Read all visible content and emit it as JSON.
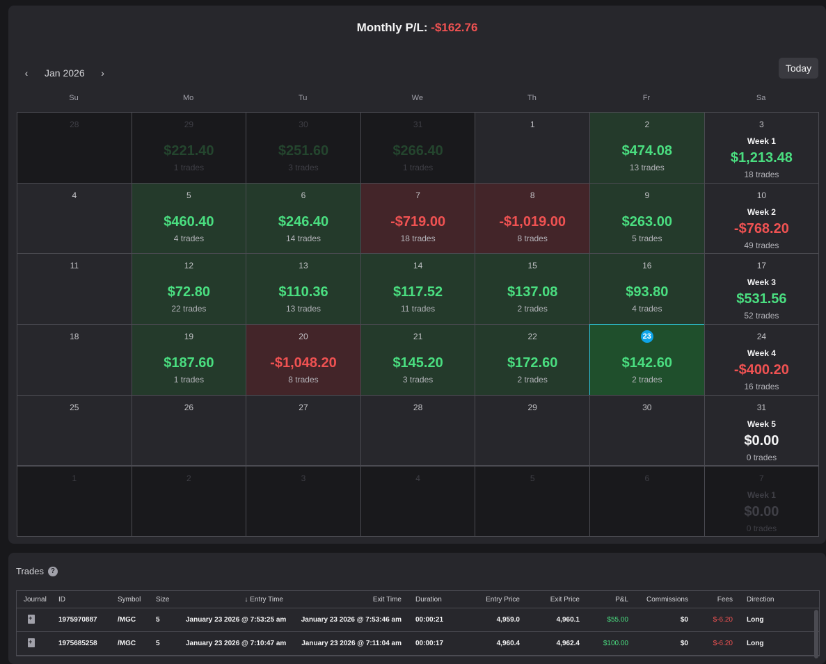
{
  "summary": {
    "label": "Monthly P/L:",
    "value": "-$162.76"
  },
  "nav": {
    "prev": "‹",
    "month": "Jan 2026",
    "next": "›",
    "today": "Today"
  },
  "weekdays": [
    "Su",
    "Mo",
    "Tu",
    "We",
    "Th",
    "Fr",
    "Sa"
  ],
  "weeks": [
    [
      {
        "day": "28",
        "faded": true
      },
      {
        "day": "29",
        "faded": true,
        "amount": "$221.40",
        "trades": "1 trades"
      },
      {
        "day": "30",
        "faded": true,
        "amount": "$251.60",
        "trades": "3 trades"
      },
      {
        "day": "31",
        "faded": true,
        "amount": "$266.40",
        "trades": "1 trades"
      },
      {
        "day": "1"
      },
      {
        "day": "2",
        "tone": "green",
        "amount": "$474.08",
        "trades": "13 trades"
      },
      {
        "day": "3",
        "week": "Week 1",
        "amount": "$1,213.48",
        "trades": "18 trades"
      }
    ],
    [
      {
        "day": "4"
      },
      {
        "day": "5",
        "tone": "green",
        "amount": "$460.40",
        "trades": "4 trades"
      },
      {
        "day": "6",
        "tone": "green",
        "amount": "$246.40",
        "trades": "14 trades"
      },
      {
        "day": "7",
        "tone": "red",
        "amount": "-$719.00",
        "trades": "18 trades"
      },
      {
        "day": "8",
        "tone": "red",
        "amount": "-$1,019.00",
        "trades": "8 trades"
      },
      {
        "day": "9",
        "tone": "green",
        "amount": "$263.00",
        "trades": "5 trades"
      },
      {
        "day": "10",
        "week": "Week 2",
        "amount": "-$768.20",
        "trades": "49 trades"
      }
    ],
    [
      {
        "day": "11"
      },
      {
        "day": "12",
        "tone": "green",
        "amount": "$72.80",
        "trades": "22 trades"
      },
      {
        "day": "13",
        "tone": "green",
        "amount": "$110.36",
        "trades": "13 trades"
      },
      {
        "day": "14",
        "tone": "green",
        "amount": "$117.52",
        "trades": "11 trades"
      },
      {
        "day": "15",
        "tone": "green",
        "amount": "$137.08",
        "trades": "2 trades"
      },
      {
        "day": "16",
        "tone": "green",
        "amount": "$93.80",
        "trades": "4 trades"
      },
      {
        "day": "17",
        "week": "Week 3",
        "amount": "$531.56",
        "trades": "52 trades"
      }
    ],
    [
      {
        "day": "18"
      },
      {
        "day": "19",
        "tone": "green",
        "amount": "$187.60",
        "trades": "1 trades"
      },
      {
        "day": "20",
        "tone": "red",
        "amount": "-$1,048.20",
        "trades": "8 trades"
      },
      {
        "day": "21",
        "tone": "green",
        "amount": "$145.20",
        "trades": "3 trades"
      },
      {
        "day": "22",
        "tone": "green",
        "amount": "$172.60",
        "trades": "2 trades"
      },
      {
        "day": "23",
        "tone": "sel",
        "amount": "$142.60",
        "trades": "2 trades"
      },
      {
        "day": "24",
        "week": "Week 4",
        "amount": "-$400.20",
        "trades": "16 trades"
      }
    ],
    [
      {
        "day": "25"
      },
      {
        "day": "26"
      },
      {
        "day": "27"
      },
      {
        "day": "28"
      },
      {
        "day": "29"
      },
      {
        "day": "30"
      },
      {
        "day": "31",
        "week": "Week 5",
        "amount": "$0.00",
        "trades": "0 trades"
      }
    ],
    [
      {
        "day": "1",
        "faded": true
      },
      {
        "day": "2",
        "faded": true
      },
      {
        "day": "3",
        "faded": true
      },
      {
        "day": "4",
        "faded": true
      },
      {
        "day": "5",
        "faded": true
      },
      {
        "day": "6",
        "faded": true
      },
      {
        "day": "7",
        "faded": true,
        "week": "Week 1",
        "amount": "$0.00",
        "trades": "0 trades"
      }
    ]
  ],
  "trades_section": {
    "title": "Trades",
    "help": "?",
    "sort_icon": "↓",
    "columns": [
      "Journal",
      "ID",
      "Symbol",
      "Size",
      "Entry Time",
      "Exit Time",
      "Duration",
      "Entry Price",
      "Exit Price",
      "P&L",
      "Commissions",
      "Fees",
      "Direction"
    ],
    "rows": [
      {
        "id": "1975970887",
        "symbol": "/MGC",
        "size": "5",
        "entry_time": "January 23 2026 @ 7:53:25 am",
        "exit_time": "January 23 2026 @ 7:53:46 am",
        "duration": "00:00:21",
        "entry_price": "4,959.0",
        "exit_price": "4,960.1",
        "pl": "$55.00",
        "commissions": "$0",
        "fees": "$-6.20",
        "direction": "Long"
      },
      {
        "id": "1975685258",
        "symbol": "/MGC",
        "size": "5",
        "entry_time": "January 23 2026 @ 7:10:47 am",
        "exit_time": "January 23 2026 @ 7:11:04 am",
        "duration": "00:00:17",
        "entry_price": "4,960.4",
        "exit_price": "4,962.4",
        "pl": "$100.00",
        "commissions": "$0",
        "fees": "$-6.20",
        "direction": "Long"
      }
    ]
  }
}
